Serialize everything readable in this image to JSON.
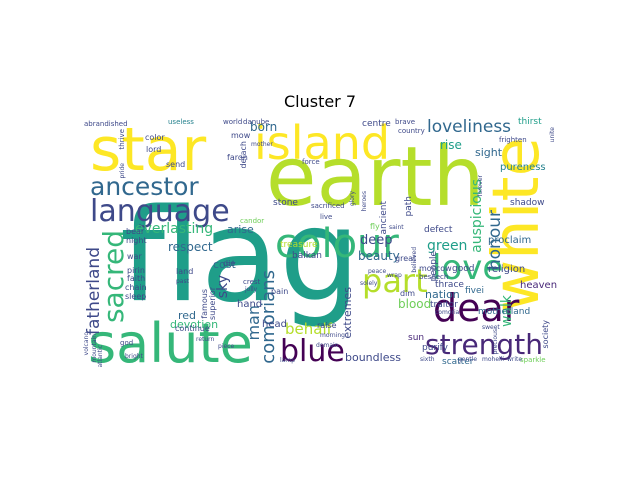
{
  "title": "Cluster 7",
  "colors": {
    "yellow": "#fde725",
    "lime": "#b5de2b",
    "green": "#6ece58",
    "mint": "#35b779",
    "teal": "#1f9e89",
    "blue": "#26828e",
    "indigo": "#31688e",
    "slate": "#3e4989",
    "purple": "#482878",
    "dark": "#440154"
  },
  "words": {
    "flag": "flag",
    "earth": "earth",
    "salute": "salute",
    "star": "star",
    "island": "island",
    "white": "white",
    "colour": "colour",
    "language": "language",
    "ancestor": "ancestor",
    "dear": "dear",
    "strength": "strength",
    "love": "love",
    "part": "part",
    "blue": "blue",
    "sacred": "sacred",
    "loveliness": "loveliness",
    "honour": "honour",
    "comorians": "comorians",
    "fatherland": "fatherland",
    "everlasting": "everlasting",
    "green": "green",
    "auspicious": "auspicious",
    "man": "man",
    "behalf": "behalf",
    "walk": "walk",
    "deep": "deep",
    "beauty": "beauty",
    "boundless": "boundless",
    "respect": "respect",
    "sky": "sky",
    "arise": "arise",
    "born": "born",
    "rise": "rise",
    "sight": "sight",
    "pureness": "pureness",
    "nation": "nation",
    "blood": "blood",
    "extremes": "extremes",
    "devotion": "devotion",
    "red": "red",
    "hand": "hand",
    "head": "head",
    "cost": "cost",
    "proclaim": "proclaim",
    "religion": "religion",
    "heaven": "heaven",
    "shadow": "shadow",
    "scatter": "scatter",
    "purify": "purify",
    "fivei": "fivei",
    "sun": "sun",
    "society": "society",
    "traitor": "traitor",
    "motherland": "motherland",
    "thrace": "thrace",
    "good": "good",
    "people": "people",
    "defect": "defect",
    "centre": "centre",
    "path": "path",
    "thirst": "thirst",
    "ancient": "ancient",
    "moscow": "moscow",
    "great": "great",
    "dim": "dim",
    "stone": "stone",
    "treasure": "treasure",
    "balkan": "balkan",
    "continue": "continue",
    "pain": "pain",
    "raise": "raise",
    "superior": "superior",
    "famous": "famous",
    "land": "land",
    "die": "die",
    "night": "night",
    "bear": "bear",
    "war": "war",
    "pirin": "pirin",
    "faith": "faith",
    "chain": "chain",
    "sleep": "sleep",
    "god": "god",
    "lord": "lord",
    "color": "color",
    "mow": "mow",
    "detach": "detach",
    "faron": "faron",
    "send": "send",
    "force": "force",
    "sacrificed": "sacrificed",
    "fly": "fly",
    "live": "live",
    "crest": "crest",
    "candor": "candor",
    "brave": "brave",
    "country": "country",
    "useless": "useless",
    "world": "world",
    "danube": "danube",
    "abrandished": "abrandished",
    "thrive": "thrive",
    "frighten": "frighten",
    "sparkle": "sparkle",
    "peace": "peace",
    "beseech": "beseech",
    "saint": "saint",
    "sixth": "sixth",
    "mountain": "mountain",
    "atlantic": "atlantic",
    "volcano": "volcano",
    "return": "return",
    "piece": "piece",
    "past": "past",
    "jolly": "jolly",
    "bright": "bright",
    "sweet": "sweet",
    "comoria": "comoria",
    "mohelli": "mohelli",
    "write": "write",
    "precious": "precious",
    "gentle": "gentle",
    "unite": "unite",
    "forever": "forever",
    "believed": "believed",
    "mother": "mother",
    "pride": "pride",
    "morning": "morning",
    "domain": "domain",
    "lamp": "lamp",
    "glory": "glory",
    "heroes": "heroes",
    "wrap": "wrap",
    "solely": "solely"
  }
}
